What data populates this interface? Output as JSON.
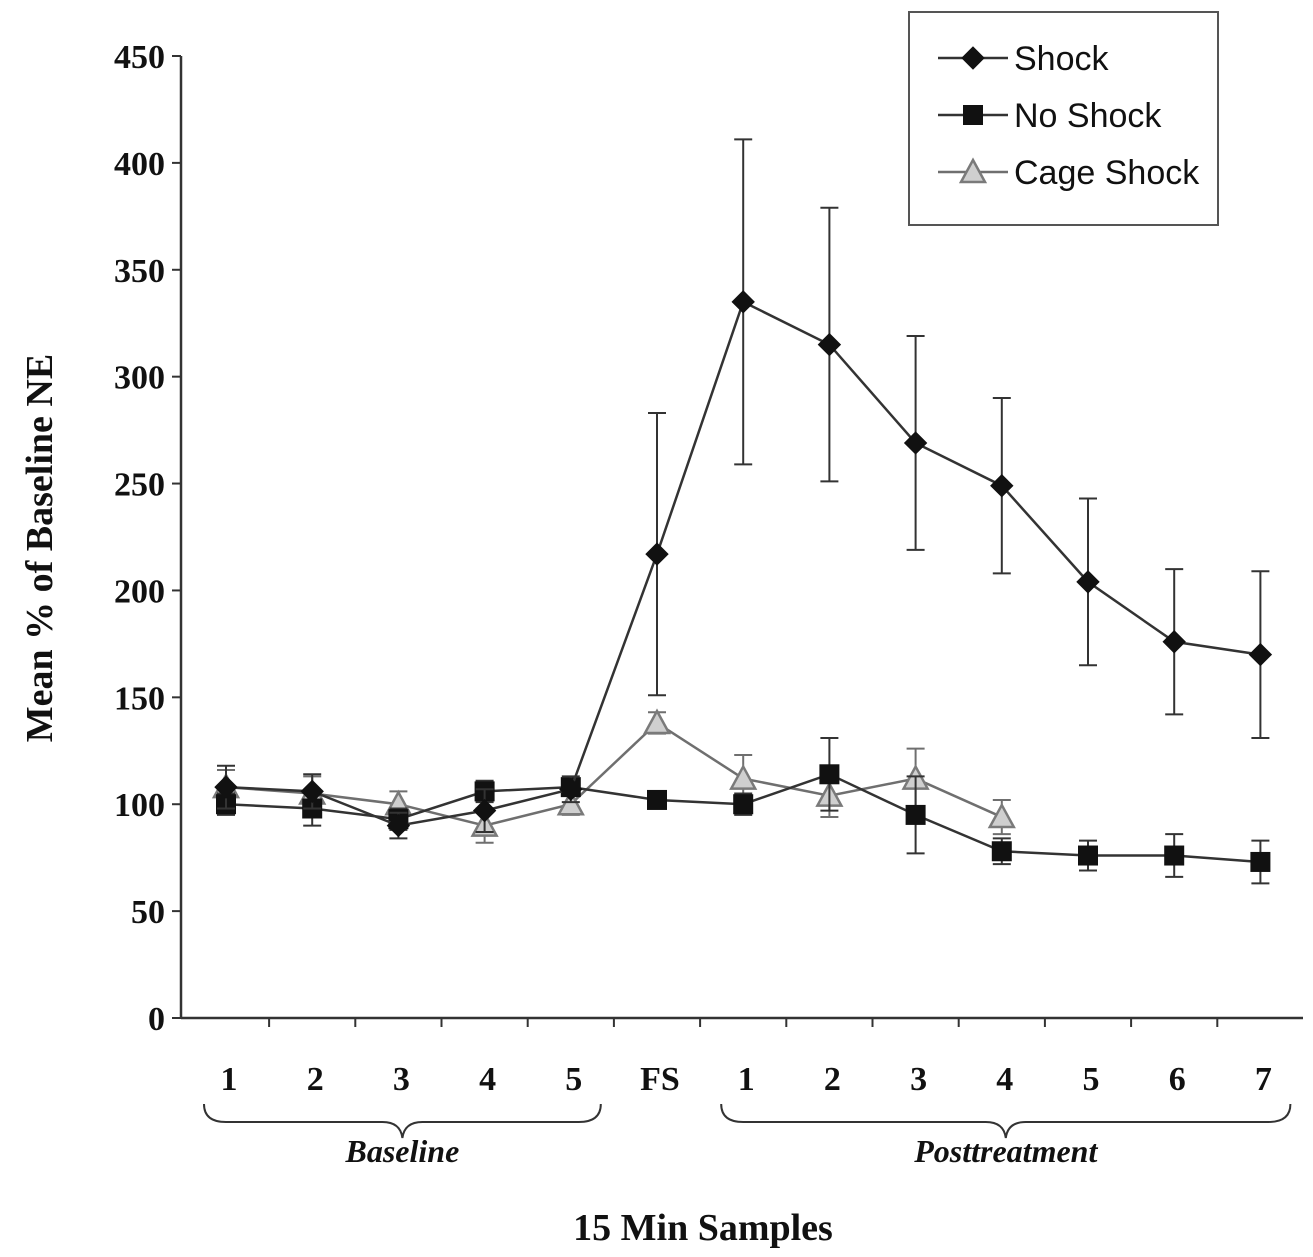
{
  "chart_data": {
    "type": "line",
    "title": "",
    "xlabel": "15 Min Samples",
    "ylabel": "Mean % of Baseline NE",
    "ylim": [
      0,
      450
    ],
    "yticks": [
      0,
      50,
      100,
      150,
      200,
      250,
      300,
      350,
      400,
      450
    ],
    "categories": [
      "1",
      "2",
      "3",
      "4",
      "5",
      "FS",
      "1",
      "2",
      "3",
      "4",
      "5",
      "6",
      "7"
    ],
    "groups": [
      {
        "label": "Baseline",
        "from": 0,
        "to": 4
      },
      {
        "label": "Posttreatment",
        "from": 6,
        "to": 12
      }
    ],
    "grid": false,
    "legend_position": "top-right",
    "series": [
      {
        "name": "Shock",
        "marker": "diamond",
        "color": "#111111",
        "values": [
          108,
          106,
          90,
          97,
          107,
          217,
          335,
          315,
          269,
          249,
          204,
          176,
          170
        ],
        "errors": [
          10,
          8,
          6,
          10,
          6,
          66,
          76,
          64,
          50,
          41,
          39,
          34,
          39
        ]
      },
      {
        "name": "No Shock",
        "marker": "square",
        "color": "#111111",
        "values": [
          100,
          98,
          93,
          106,
          108,
          102,
          100,
          114,
          95,
          78,
          76,
          76,
          73
        ],
        "errors": [
          5,
          8,
          5,
          5,
          4,
          4,
          5,
          17,
          18,
          6,
          7,
          10,
          10
        ]
      },
      {
        "name": "Cage Shock",
        "marker": "triangle",
        "color": "#8a8a8a",
        "values": [
          108,
          105,
          100,
          90,
          100,
          138,
          112,
          104,
          112,
          94,
          null,
          null,
          null
        ],
        "errors": [
          8,
          8,
          6,
          8,
          5,
          5,
          11,
          10,
          14,
          8,
          null,
          null,
          null
        ]
      }
    ]
  }
}
